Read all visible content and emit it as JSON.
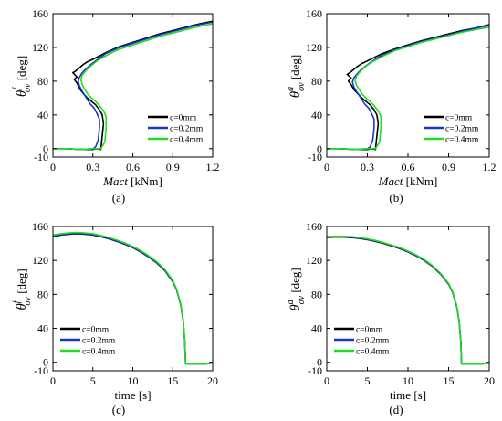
{
  "chart_data": [
    {
      "id": "a",
      "type": "line",
      "panel_label": "(a)",
      "xlabel": "Mact",
      "xunit": "[kNm]",
      "ylabel_symbol": "θ",
      "ylabel_sup": "f",
      "ylabel_sub": "ov",
      "yunit": "[deg]",
      "xlim": [
        0,
        1.2
      ],
      "ylim": [
        -10,
        160
      ],
      "xticks": [
        0,
        0.3,
        0.6,
        0.9,
        1.2
      ],
      "xtick_labels": [
        "0",
        "0.3",
        "0.6",
        "0.9",
        "1.2"
      ],
      "yticks": [
        -10,
        0,
        40,
        80,
        120,
        160
      ],
      "ytick_labels": [
        "-10",
        "0",
        "40",
        "80",
        "120",
        "160"
      ],
      "grid": false,
      "legend_position": "lower-right",
      "series": [
        {
          "name": "c=0mm",
          "color": "#000000",
          "x": [
            0,
            0.1,
            0.22,
            0.3,
            0.33,
            0.36,
            0.37,
            0.38,
            0.37,
            0.35,
            0.32,
            0.29,
            0.26,
            0.23,
            0.2,
            0.18,
            0.16,
            0.18,
            0.15,
            0.17,
            0.2,
            0.23,
            0.26,
            0.3,
            0.4,
            0.5,
            0.6,
            0.7,
            0.8,
            0.9,
            1.0,
            1.1,
            1.2
          ],
          "y": [
            0,
            0,
            -1,
            -1,
            0,
            -1,
            15,
            30,
            40,
            46,
            52,
            56,
            60,
            65,
            71,
            78,
            82,
            85,
            90,
            92,
            96,
            100,
            103,
            106,
            114,
            121,
            126,
            131,
            136,
            140,
            144,
            148,
            151
          ]
        },
        {
          "name": "c=0.2mm",
          "color": "#1c35c8",
          "x": [
            0,
            0.1,
            0.22,
            0.3,
            0.32,
            0.34,
            0.35,
            0.35,
            0.33,
            0.31,
            0.28,
            0.26,
            0.24,
            0.22,
            0.2,
            0.19,
            0.2,
            0.22,
            0.25,
            0.28,
            0.32,
            0.4,
            0.5,
            0.6,
            0.7,
            0.8,
            0.9,
            1.0,
            1.1,
            1.2
          ],
          "y": [
            0,
            0,
            -1,
            0,
            2,
            10,
            25,
            35,
            42,
            48,
            53,
            58,
            63,
            68,
            74,
            80,
            85,
            90,
            95,
            99,
            104,
            113,
            120,
            125,
            130,
            135,
            139,
            143,
            147,
            150
          ]
        },
        {
          "name": "c=0.4mm",
          "color": "#22dd22",
          "x": [
            0,
            0.1,
            0.22,
            0.3,
            0.36,
            0.39,
            0.4,
            0.4,
            0.38,
            0.35,
            0.32,
            0.29,
            0.26,
            0.24,
            0.22,
            0.21,
            0.22,
            0.24,
            0.27,
            0.3,
            0.34,
            0.42,
            0.5,
            0.6,
            0.7,
            0.8,
            0.9,
            1.0,
            1.1,
            1.2
          ],
          "y": [
            0,
            0,
            -1,
            0,
            0,
            8,
            25,
            38,
            45,
            51,
            56,
            60,
            65,
            70,
            76,
            82,
            87,
            91,
            96,
            100,
            105,
            112,
            118,
            123,
            128,
            133,
            137,
            141,
            145,
            148
          ]
        }
      ]
    },
    {
      "id": "b",
      "type": "line",
      "panel_label": "(b)",
      "xlabel": "Mact",
      "xunit": "[kNm]",
      "ylabel_symbol": "θ",
      "ylabel_sup": "a",
      "ylabel_sub": "ov",
      "yunit": "[deg]",
      "xlim": [
        0,
        1.2
      ],
      "ylim": [
        -10,
        160
      ],
      "xticks": [
        0,
        0.3,
        0.6,
        0.9,
        1.2
      ],
      "xtick_labels": [
        "0",
        "0.3",
        "0.6",
        "0.9",
        "1.2"
      ],
      "yticks": [
        -10,
        0,
        40,
        80,
        120,
        160
      ],
      "ytick_labels": [
        "-10",
        "0",
        "40",
        "80",
        "120",
        "160"
      ],
      "grid": false,
      "legend_position": "lower-right",
      "series": [
        {
          "name": "c=0mm",
          "color": "#000000",
          "x": [
            0,
            0.1,
            0.22,
            0.3,
            0.33,
            0.36,
            0.37,
            0.38,
            0.37,
            0.35,
            0.32,
            0.29,
            0.26,
            0.23,
            0.2,
            0.18,
            0.16,
            0.18,
            0.15,
            0.17,
            0.2,
            0.23,
            0.26,
            0.3,
            0.4,
            0.5,
            0.6,
            0.7,
            0.8,
            0.9,
            1.0,
            1.1,
            1.2
          ],
          "y": [
            0,
            0,
            -1,
            -1,
            0,
            -1,
            15,
            30,
            40,
            46,
            52,
            56,
            60,
            65,
            70,
            76,
            80,
            84,
            88,
            90,
            94,
            98,
            101,
            104,
            112,
            118,
            123,
            128,
            132,
            136,
            140,
            143,
            147
          ]
        },
        {
          "name": "c=0.2mm",
          "color": "#1c35c8",
          "x": [
            0,
            0.1,
            0.22,
            0.3,
            0.32,
            0.34,
            0.35,
            0.35,
            0.33,
            0.31,
            0.28,
            0.26,
            0.24,
            0.22,
            0.2,
            0.19,
            0.2,
            0.22,
            0.25,
            0.28,
            0.32,
            0.4,
            0.5,
            0.6,
            0.7,
            0.8,
            0.9,
            1.0,
            1.1,
            1.2
          ],
          "y": [
            0,
            0,
            -1,
            0,
            2,
            10,
            25,
            35,
            42,
            48,
            53,
            58,
            63,
            68,
            73,
            79,
            84,
            88,
            93,
            97,
            102,
            110,
            117,
            122,
            127,
            131,
            135,
            139,
            143,
            146
          ]
        },
        {
          "name": "c=0.4mm",
          "color": "#22dd22",
          "x": [
            0,
            0.1,
            0.22,
            0.3,
            0.36,
            0.39,
            0.4,
            0.4,
            0.38,
            0.35,
            0.32,
            0.29,
            0.26,
            0.24,
            0.22,
            0.21,
            0.22,
            0.24,
            0.27,
            0.3,
            0.34,
            0.42,
            0.5,
            0.6,
            0.7,
            0.8,
            0.9,
            1.0,
            1.1,
            1.2
          ],
          "y": [
            0,
            0,
            -1,
            0,
            0,
            8,
            25,
            38,
            45,
            51,
            56,
            60,
            65,
            70,
            75,
            81,
            86,
            90,
            95,
            99,
            103,
            110,
            116,
            121,
            126,
            130,
            134,
            138,
            141,
            144
          ]
        }
      ]
    },
    {
      "id": "c",
      "type": "line",
      "panel_label": "(c)",
      "xlabel": "time",
      "xunit": "[s]",
      "ylabel_symbol": "θ",
      "ylabel_sup": "f",
      "ylabel_sub": "ov",
      "yunit": "[deg]",
      "xlim": [
        0,
        20
      ],
      "ylim": [
        -10,
        160
      ],
      "xticks": [
        0,
        5,
        10,
        15,
        20
      ],
      "xtick_labels": [
        "0",
        "5",
        "10",
        "15",
        "20"
      ],
      "yticks": [
        -10,
        0,
        40,
        80,
        120,
        160
      ],
      "ytick_labels": [
        "-10",
        "0",
        "40",
        "80",
        "120",
        "160"
      ],
      "grid": false,
      "legend_position": "lower-left",
      "series": [
        {
          "name": "c=0mm",
          "color": "#000000",
          "x": [
            0,
            1,
            2,
            3,
            4,
            5,
            6,
            7,
            8,
            9,
            10,
            11,
            12,
            13,
            14,
            15,
            15.5,
            16,
            16.3,
            16.5,
            16.6,
            17,
            18,
            19,
            20
          ],
          "y": [
            148,
            150,
            151,
            151.5,
            151,
            150,
            148,
            145.5,
            142.5,
            139,
            135,
            130,
            124,
            117,
            108,
            95,
            85,
            68,
            50,
            25,
            -2,
            -2,
            -2,
            -2,
            -1
          ]
        },
        {
          "name": "c=0.2mm",
          "color": "#1c35c8",
          "x": [
            0,
            1,
            2,
            3,
            4,
            5,
            6,
            7,
            8,
            9,
            10,
            11,
            12,
            13,
            14,
            15,
            15.5,
            16,
            16.3,
            16.5,
            16.6,
            17,
            18,
            19,
            20
          ],
          "y": [
            149,
            150.5,
            151.5,
            152,
            151.5,
            150.5,
            148.5,
            146,
            143,
            139.5,
            135.5,
            130.5,
            124.5,
            117.5,
            108.5,
            95.5,
            85,
            68,
            50,
            25,
            -2,
            -2,
            -2,
            -2,
            -1
          ]
        },
        {
          "name": "c=0.4mm",
          "color": "#22dd22",
          "x": [
            0,
            1,
            2,
            3,
            4,
            5,
            6,
            7,
            8,
            9,
            10,
            11,
            12,
            13,
            14,
            15,
            15.5,
            16,
            16.3,
            16.5,
            16.6,
            17,
            18,
            19,
            20
          ],
          "y": [
            150,
            151.5,
            152.5,
            153,
            152.5,
            151.5,
            149.5,
            147,
            144,
            140.5,
            136.5,
            131.5,
            125.5,
            118.5,
            109.5,
            96.5,
            86,
            69,
            51,
            26,
            -2,
            -2,
            -2,
            -2,
            -1
          ]
        }
      ]
    },
    {
      "id": "d",
      "type": "line",
      "panel_label": "(d)",
      "xlabel": "time",
      "xunit": "[s]",
      "ylabel_symbol": "θ",
      "ylabel_sup": "a",
      "ylabel_sub": "ov",
      "yunit": "[deg]",
      "xlim": [
        0,
        20
      ],
      "ylim": [
        -10,
        160
      ],
      "xticks": [
        0,
        5,
        10,
        15,
        20
      ],
      "xtick_labels": [
        "0",
        "5",
        "10",
        "15",
        "20"
      ],
      "yticks": [
        -10,
        0,
        40,
        80,
        120,
        160
      ],
      "ytick_labels": [
        "-10",
        "0",
        "40",
        "80",
        "120",
        "160"
      ],
      "grid": false,
      "legend_position": "lower-left",
      "series": [
        {
          "name": "c=0mm",
          "color": "#000000",
          "x": [
            0,
            1,
            2,
            3,
            4,
            5,
            6,
            7,
            8,
            9,
            10,
            11,
            12,
            13,
            14,
            15,
            15.5,
            16,
            16.3,
            16.5,
            16.6,
            17,
            18,
            19,
            20
          ],
          "y": [
            147,
            147.5,
            147.5,
            147,
            146,
            144.5,
            142.5,
            140,
            137,
            134,
            130,
            125.5,
            120,
            113,
            104,
            92,
            82,
            66,
            48,
            24,
            -2,
            -2,
            -2,
            -2,
            -1
          ]
        },
        {
          "name": "c=0.2mm",
          "color": "#1c35c8",
          "x": [
            0,
            1,
            2,
            3,
            4,
            5,
            6,
            7,
            8,
            9,
            10,
            11,
            12,
            13,
            14,
            15,
            15.5,
            16,
            16.3,
            16.5,
            16.6,
            17,
            18,
            19,
            20
          ],
          "y": [
            147.5,
            148,
            148,
            147.5,
            146.5,
            145,
            143,
            140.5,
            137.5,
            134.5,
            130.5,
            126,
            120.5,
            113.5,
            104.5,
            92.5,
            82.5,
            66,
            48,
            24,
            -2,
            -2,
            -2,
            -2,
            -1
          ]
        },
        {
          "name": "c=0.4mm",
          "color": "#22dd22",
          "x": [
            0,
            1,
            2,
            3,
            4,
            5,
            6,
            7,
            8,
            9,
            10,
            11,
            12,
            13,
            14,
            15,
            15.5,
            16,
            16.3,
            16.5,
            16.6,
            17,
            18,
            19,
            20
          ],
          "y": [
            148,
            148.5,
            148.5,
            148,
            147,
            145.5,
            143.5,
            141,
            138,
            135,
            131,
            126.5,
            121,
            114,
            105,
            93,
            83,
            67,
            49,
            25,
            -2,
            -2,
            -2,
            -2,
            -1
          ]
        }
      ]
    }
  ]
}
